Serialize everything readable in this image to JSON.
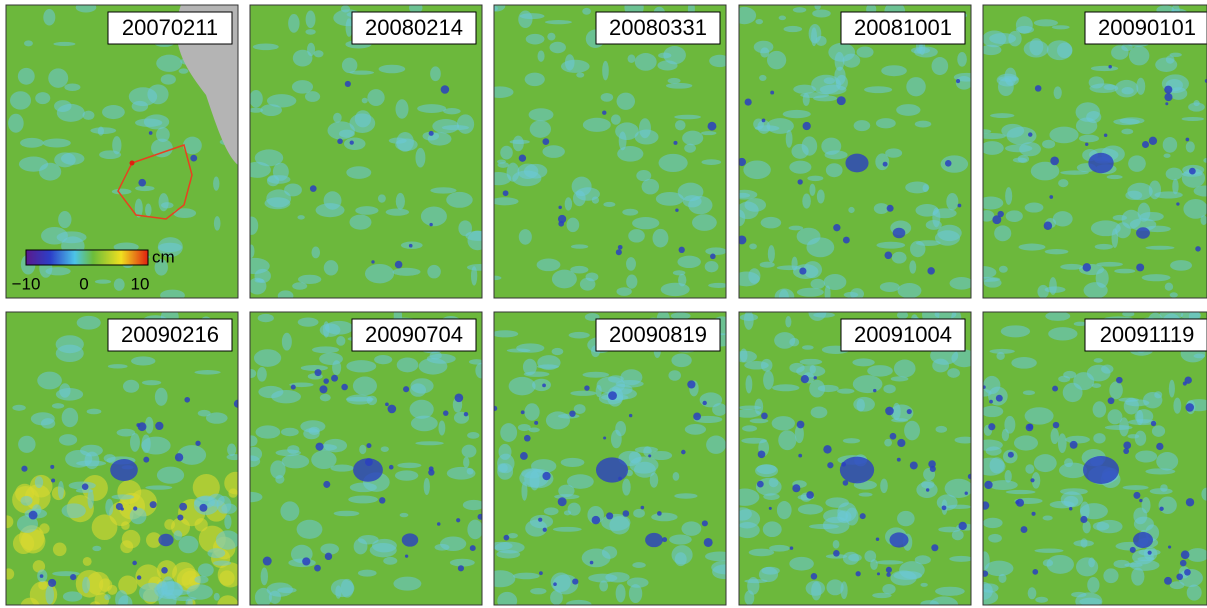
{
  "panels": [
    {
      "label": "20070211"
    },
    {
      "label": "20080214"
    },
    {
      "label": "20080331"
    },
    {
      "label": "20081001"
    },
    {
      "label": "20090101"
    },
    {
      "label": "20090216"
    },
    {
      "label": "20090704"
    },
    {
      "label": "20090819"
    },
    {
      "label": "20091004"
    },
    {
      "label": "20091119"
    }
  ],
  "colorbar": {
    "unit": "cm",
    "ticks": [
      "−10",
      "0",
      "10"
    ]
  }
}
